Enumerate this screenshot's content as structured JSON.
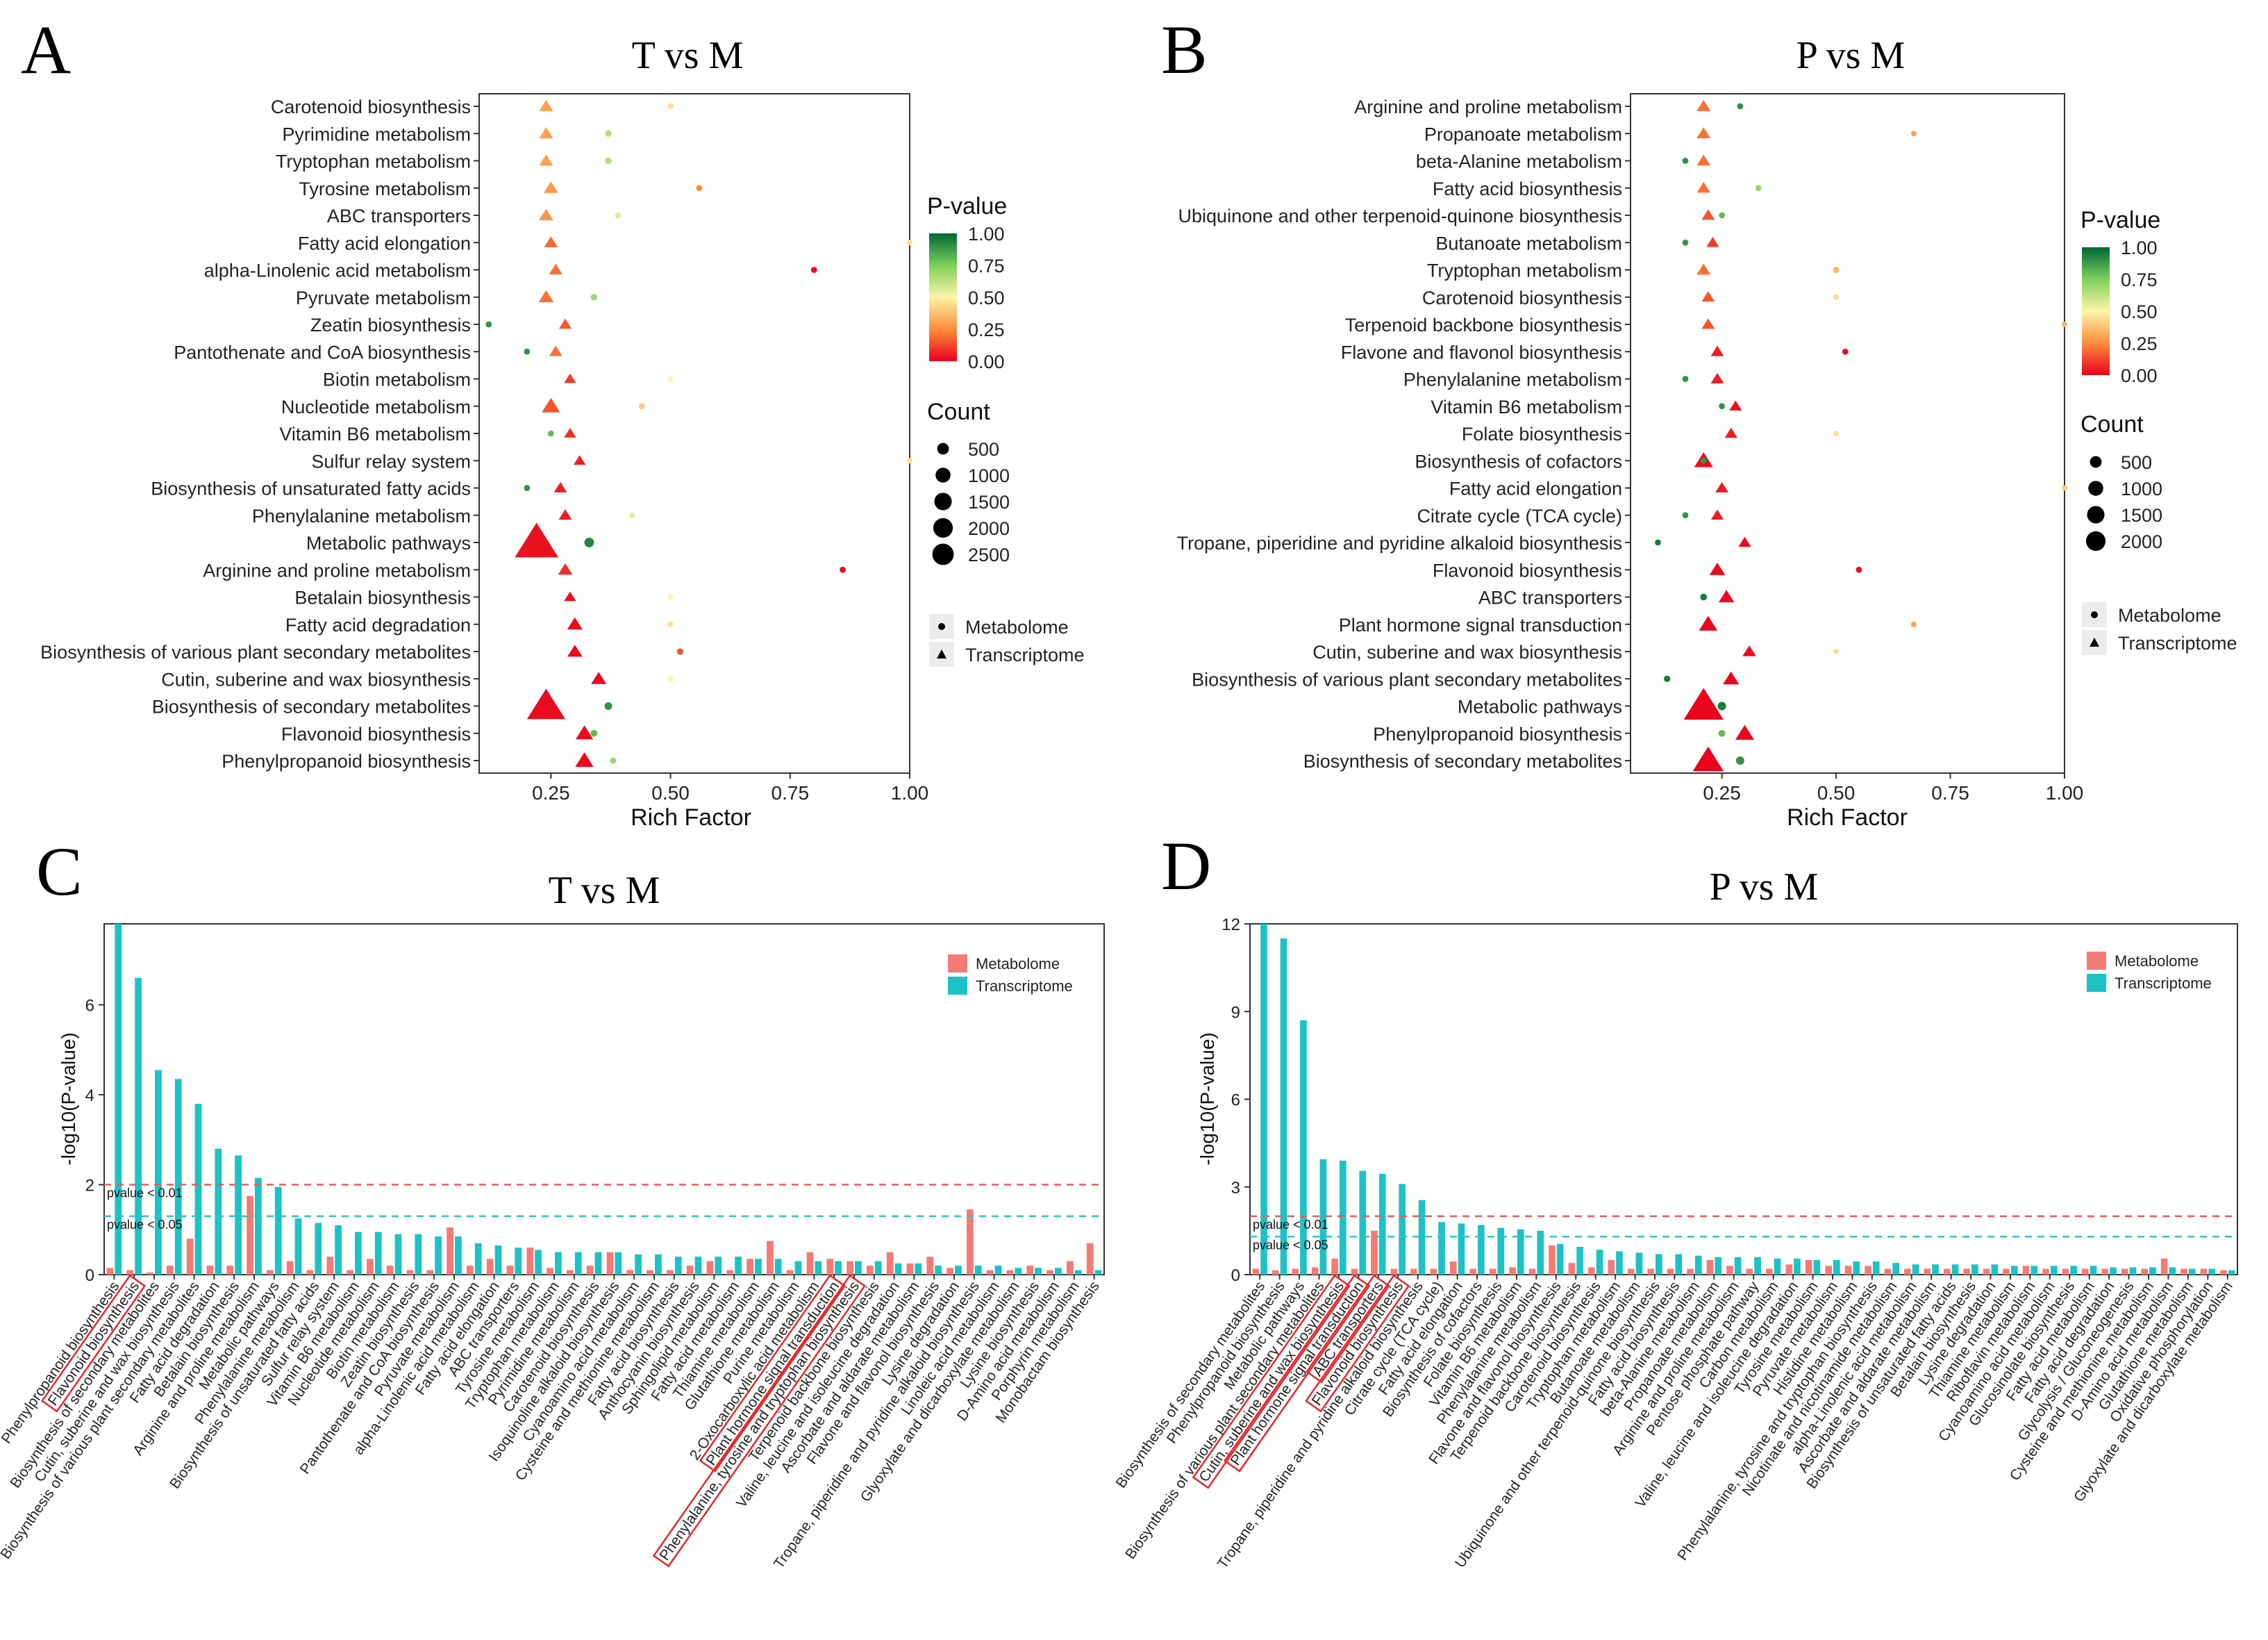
{
  "panel_letters": [
    "A",
    "B",
    "C",
    "D"
  ],
  "chart_data": [
    {
      "id": "A",
      "type": "scatter",
      "title": "T vs M",
      "xlabel": "Rich Factor",
      "xlim": [
        0.1,
        1.0
      ],
      "xticks": [
        "0.25",
        "0.50",
        "0.75",
        "1.00"
      ],
      "xtick_values": [
        0.25,
        0.5,
        0.75,
        1.0
      ],
      "categories": [
        "Carotenoid biosynthesis",
        "Pyrimidine metabolism",
        "Tryptophan metabolism",
        "Tyrosine metabolism",
        "ABC transporters",
        "Fatty acid elongation",
        "alpha-Linolenic acid metabolism",
        "Pyruvate metabolism",
        "Zeatin biosynthesis",
        "Pantothenate and CoA biosynthesis",
        "Biotin metabolism",
        "Nucleotide metabolism",
        "Vitamin B6 metabolism",
        "Sulfur relay system",
        "Biosynthesis of unsaturated fatty acids",
        "Phenylalanine metabolism",
        "Metabolic pathways",
        "Arginine and proline metabolism",
        "Betalain biosynthesis",
        "Fatty acid degradation",
        "Biosynthesis of various plant secondary metabolites",
        "Cutin, suberine and wax biosynthesis",
        "Biosynthesis of secondary metabolites",
        "Flavonoid biosynthesis",
        "Phenylpropanoid biosynthesis"
      ],
      "transcriptome": {
        "rich": [
          0.24,
          0.24,
          0.24,
          0.25,
          0.24,
          0.25,
          0.26,
          0.24,
          0.28,
          0.26,
          0.29,
          0.25,
          0.29,
          0.31,
          0.27,
          0.28,
          0.22,
          0.28,
          0.29,
          0.3,
          0.3,
          0.35,
          0.24,
          0.32,
          0.32
        ],
        "pvalue": [
          0.3,
          0.3,
          0.3,
          0.28,
          0.28,
          0.18,
          0.2,
          0.2,
          0.15,
          0.2,
          0.1,
          0.15,
          0.08,
          0.05,
          0.05,
          0.05,
          0.03,
          0.08,
          0.03,
          0.02,
          0.02,
          0.02,
          0.02,
          0.02,
          0.02
        ],
        "count": [
          80,
          90,
          80,
          90,
          100,
          70,
          70,
          110,
          50,
          60,
          40,
          230,
          40,
          40,
          60,
          60,
          2600,
          90,
          40,
          120,
          110,
          120,
          1900,
          200,
          230
        ]
      },
      "metabolome": {
        "rich": [
          0.5,
          0.37,
          0.37,
          0.56,
          0.39,
          1.0,
          0.8,
          0.34,
          0.12,
          0.2,
          0.5,
          0.44,
          0.25,
          1.0,
          0.2,
          0.42,
          0.33,
          0.86,
          0.5,
          0.5,
          0.52,
          0.5,
          0.37,
          0.34,
          0.38
        ],
        "pvalue": [
          0.45,
          0.65,
          0.65,
          0.25,
          0.55,
          0.45,
          0.02,
          0.7,
          0.9,
          0.9,
          0.5,
          0.4,
          0.8,
          0.45,
          0.9,
          0.55,
          0.93,
          0.02,
          0.5,
          0.45,
          0.15,
          0.5,
          0.9,
          0.8,
          0.7
        ],
        "count": [
          20,
          30,
          30,
          20,
          20,
          10,
          20,
          30,
          20,
          20,
          10,
          20,
          20,
          10,
          20,
          10,
          180,
          20,
          10,
          10,
          30,
          20,
          70,
          40,
          20
        ]
      },
      "color_legend": {
        "title": "P-value",
        "ticks": [
          "1.00",
          "0.75",
          "0.50",
          "0.25",
          "0.00"
        ]
      },
      "size_legend": {
        "title": "Count",
        "labels": [
          "500",
          "1000",
          "1500",
          "2000",
          "2500"
        ],
        "values": [
          500,
          1000,
          1500,
          2000,
          2500
        ]
      },
      "shape_legend": [
        "Metabolome",
        "Transcriptome"
      ]
    },
    {
      "id": "B",
      "type": "scatter",
      "title": "P vs M",
      "xlabel": "Rich Factor",
      "xlim": [
        0.05,
        1.0
      ],
      "xticks": [
        "0.25",
        "0.50",
        "0.75",
        "1.00"
      ],
      "xtick_values": [
        0.25,
        0.5,
        0.75,
        1.0
      ],
      "categories": [
        "Arginine and proline metabolism",
        "Propanoate metabolism",
        "beta-Alanine metabolism",
        "Fatty acid biosynthesis",
        "Ubiquinone and other terpenoid-quinone biosynthesis",
        "Butanoate metabolism",
        "Tryptophan metabolism",
        "Carotenoid biosynthesis",
        "Terpenoid backbone biosynthesis",
        "Flavone and flavonol biosynthesis",
        "Phenylalanine metabolism",
        "Vitamin B6 metabolism",
        "Folate biosynthesis",
        "Biosynthesis of cofactors",
        "Fatty acid elongation",
        "Citrate cycle (TCA cycle)",
        "Tropane, piperidine and pyridine alkaloid biosynthesis",
        "Flavonoid biosynthesis",
        "ABC transporters",
        "Plant hormone signal transduction",
        "Cutin, suberine and wax biosynthesis",
        "Biosynthesis of various plant secondary metabolites",
        "Metabolic pathways",
        "Phenylpropanoid biosynthesis",
        "Biosynthesis of secondary metabolites"
      ],
      "transcriptome": {
        "rich": [
          0.21,
          0.21,
          0.21,
          0.21,
          0.22,
          0.23,
          0.21,
          0.22,
          0.22,
          0.24,
          0.24,
          0.28,
          0.27,
          0.21,
          0.25,
          0.24,
          0.3,
          0.24,
          0.26,
          0.22,
          0.31,
          0.27,
          0.21,
          0.3,
          0.22
        ],
        "pvalue": [
          0.2,
          0.2,
          0.2,
          0.2,
          0.15,
          0.1,
          0.2,
          0.15,
          0.15,
          0.05,
          0.05,
          0.03,
          0.05,
          0.02,
          0.05,
          0.05,
          0.02,
          0.02,
          0.02,
          0.01,
          0.02,
          0.01,
          0.01,
          0.01,
          0.01
        ],
        "count": [
          80,
          80,
          70,
          70,
          60,
          50,
          80,
          60,
          60,
          60,
          60,
          50,
          50,
          250,
          60,
          50,
          50,
          130,
          130,
          240,
          70,
          150,
          2100,
          250,
          1100
        ]
      },
      "metabolome": {
        "rich": [
          0.29,
          0.67,
          0.17,
          0.33,
          0.25,
          0.17,
          0.5,
          0.5,
          1.0,
          0.52,
          0.17,
          0.25,
          0.5,
          0.21,
          1.0,
          0.17,
          0.11,
          0.55,
          0.21,
          0.67,
          0.5,
          0.13,
          0.25,
          0.25,
          0.29
        ],
        "pvalue": [
          0.9,
          0.3,
          0.9,
          0.7,
          0.8,
          0.9,
          0.35,
          0.45,
          0.35,
          0.02,
          0.9,
          0.9,
          0.45,
          0.9,
          0.4,
          0.9,
          0.95,
          0.02,
          0.95,
          0.3,
          0.45,
          0.95,
          0.95,
          0.8,
          0.9
        ],
        "count": [
          20,
          10,
          20,
          20,
          20,
          20,
          20,
          10,
          10,
          20,
          20,
          20,
          10,
          20,
          10,
          20,
          20,
          20,
          40,
          10,
          10,
          30,
          110,
          40,
          100
        ]
      },
      "color_legend": {
        "title": "P-value",
        "ticks": [
          "1.00",
          "0.75",
          "0.50",
          "0.25",
          "0.00"
        ]
      },
      "size_legend": {
        "title": "Count",
        "labels": [
          "500",
          "1000",
          "1500",
          "2000"
        ],
        "values": [
          500,
          1000,
          1500,
          2000
        ]
      },
      "shape_legend": [
        "Metabolome",
        "Transcriptome"
      ]
    },
    {
      "id": "C",
      "type": "bar",
      "title": "T vs M",
      "ylabel": "-log10(P-value)",
      "ylim": [
        0,
        7.8
      ],
      "yticks": [
        "0",
        "2",
        "4",
        "6"
      ],
      "ytick_values": [
        0,
        2,
        4,
        6
      ],
      "thresholds": [
        {
          "label": "pvalue < 0.01",
          "value": 2.0,
          "color": "#ef5a5a"
        },
        {
          "label": "pvalue < 0.05",
          "value": 1.3,
          "color": "#35c0c8"
        }
      ],
      "legend": [
        "Metabolome",
        "Transcriptome"
      ],
      "highlighted": [
        1,
        36,
        37
      ],
      "categories": [
        "Phenylpropanoid biosynthesis",
        "Flavonoid biosynthesis",
        "Biosynthesis of secondary metabolites",
        "Cutin, suberine and wax biosynthesis",
        "Biosynthesis of various plant secondary metabolites",
        "Fatty acid degradation",
        "Betalain biosynthesis",
        "Arginine and proline metabolism",
        "Metabolic pathways",
        "Phenylalanine metabolism",
        "Biosynthesis of unsaturated fatty acids",
        "Sulfur relay system",
        "Vitamin B6 metabolism",
        "Nucleotide metabolism",
        "Biotin metabolism",
        "Zeatin biosynthesis",
        "Pantothenate and CoA biosynthesis",
        "Pyruvate metabolism",
        "alpha-Linolenic acid metabolism",
        "Fatty acid elongation",
        "ABC transporters",
        "Tyrosine metabolism",
        "Tryptophan metabolism",
        "Pyrimidine metabolism",
        "Carotenoid biosynthesis",
        "Isoquinoline alkaloid biosynthesis",
        "Cyanoamino acid metabolism",
        "Cysteine and methionine metabolism",
        "Fatty acid biosynthesis",
        "Anthocyanin biosynthesis",
        "Sphingolipid metabolism",
        "Fatty acid metabolism",
        "Thiamine metabolism",
        "Glutathione metabolism",
        "Purine metabolism",
        "2-Oxocarboxylic acid metabolism",
        "Plant hormone signal transduction",
        "Phenylalanine, tyrosine and tryptophan biosynthesis",
        "Terpenoid backbone biosynthesis",
        "Valine, leucine and isoleucine degradation",
        "Ascorbate and aldarate metabolism",
        "Flavone and flavonol biosynthesis",
        "Lysine degradation",
        "Tropane, piperidine and pyridine alkaloid biosynthesis",
        "Linoleic acid metabolism",
        "Glyoxylate and dicarboxylate metabolism",
        "Lysine biosynthesis",
        "D-Amino acid metabolism",
        "Porphyrin metabolism",
        "Monobactam biosynthesis"
      ],
      "series": [
        {
          "name": "Metabolome",
          "values": [
            0.15,
            0.1,
            0.05,
            0.2,
            0.8,
            0.2,
            0.2,
            1.75,
            0.1,
            0.3,
            0.1,
            0.4,
            0.1,
            0.35,
            0.2,
            0.1,
            0.1,
            1.05,
            0.2,
            0.35,
            0.2,
            0.6,
            0.15,
            0.1,
            0.2,
            0.5,
            0.1,
            0.1,
            0.1,
            0.2,
            0.3,
            0.1,
            0.35,
            0.75,
            0.1,
            0.5,
            0.35,
            0.3,
            0.2,
            0.5,
            0.25,
            0.4,
            0.15,
            1.45,
            0.1,
            0.1,
            0.2,
            0.1,
            0.3,
            0.7
          ]
        },
        {
          "name": "Transcriptome",
          "values": [
            7.8,
            6.6,
            4.55,
            4.35,
            3.8,
            2.8,
            2.65,
            2.15,
            1.95,
            1.25,
            1.15,
            1.1,
            0.95,
            0.95,
            0.9,
            0.9,
            0.85,
            0.85,
            0.7,
            0.65,
            0.6,
            0.55,
            0.5,
            0.5,
            0.5,
            0.5,
            0.45,
            0.45,
            0.4,
            0.4,
            0.4,
            0.4,
            0.35,
            0.35,
            0.3,
            0.3,
            0.3,
            0.3,
            0.3,
            0.25,
            0.25,
            0.2,
            0.2,
            0.2,
            0.2,
            0.15,
            0.15,
            0.15,
            0.1,
            0.1
          ]
        }
      ]
    },
    {
      "id": "D",
      "type": "bar",
      "title": "P vs M",
      "ylabel": "-log10(P-value)",
      "ylim": [
        0,
        12
      ],
      "yticks": [
        "0",
        "3",
        "6",
        "9",
        "12"
      ],
      "ytick_values": [
        0,
        3,
        6,
        9,
        12
      ],
      "thresholds": [
        {
          "label": "pvalue < 0.01",
          "value": 2.0,
          "color": "#ef5a5a"
        },
        {
          "label": "pvalue < 0.05",
          "value": 1.3,
          "color": "#35c0c8"
        }
      ],
      "legend": [
        "Metabolome",
        "Transcriptome"
      ],
      "highlighted": [
        4,
        5,
        6,
        7
      ],
      "categories": [
        "Biosynthesis of secondary metabolites",
        "Phenylpropanoid biosynthesis",
        "Metabolic pathways",
        "Biosynthesis of various plant secondary metabolites",
        "Cutin, suberine and wax biosynthesis",
        "Plant hormone signal transduction",
        "ABC transporters",
        "Flavonoid biosynthesis",
        "Tropane, piperidine and pyridine alkaloid biosynthesis",
        "Citrate cycle (TCA cycle)",
        "Fatty acid elongation",
        "Biosynthesis of cofactors",
        "Folate biosynthesis",
        "Vitamin B6 metabolism",
        "Phenylalanine metabolism",
        "Flavone and flavonol biosynthesis",
        "Terpenoid backbone biosynthesis",
        "Carotenoid biosynthesis",
        "Tryptophan metabolism",
        "Butanoate metabolism",
        "Ubiquinone and other terpenoid-quinone biosynthesis",
        "Fatty acid biosynthesis",
        "beta-Alanine metabolism",
        "Propanoate metabolism",
        "Arginine and proline metabolism",
        "Pentose phosphate pathway",
        "Carbon metabolism",
        "Valine, leucine and isoleucine degradation",
        "Tyrosine metabolism",
        "Pyruvate metabolism",
        "Histidine metabolism",
        "Phenylalanine, tyrosine and tryptophan biosynthesis",
        "Nicotinate and nicotinamide metabolism",
        "alpha-Linolenic acid metabolism",
        "Ascorbate and aldarate metabolism",
        "Biosynthesis of unsaturated fatty acids",
        "Betalain biosynthesis",
        "Lysine degradation",
        "Thiamine metabolism",
        "Riboflavin metabolism",
        "Cyanoamino acid metabolism",
        "Glucosinolate biosynthesis",
        "Fatty acid metabolism",
        "Fatty acid degradation",
        "Glycolysis / Gluconeogenesis",
        "Cysteine and methionine metabolism",
        "D-Amino acid metabolism",
        "Glutathione metabolism",
        "Oxidative phosphorylation",
        "Glyoxylate and dicarboxylate metabolism"
      ],
      "series": [
        {
          "name": "Metabolome",
          "values": [
            0.2,
            0.15,
            0.2,
            0.25,
            0.55,
            0.2,
            1.5,
            0.2,
            0.2,
            0.2,
            0.45,
            0.2,
            0.2,
            0.25,
            0.2,
            1.0,
            0.4,
            0.25,
            0.5,
            0.2,
            0.2,
            0.2,
            0.2,
            0.5,
            0.3,
            0.2,
            0.2,
            0.35,
            0.5,
            0.3,
            0.3,
            0.3,
            0.2,
            0.2,
            0.2,
            0.2,
            0.2,
            0.2,
            0.2,
            0.3,
            0.2,
            0.2,
            0.2,
            0.2,
            0.2,
            0.2,
            0.55,
            0.2,
            0.2,
            0.15
          ]
        },
        {
          "name": "Transcriptome",
          "values": [
            12.0,
            11.5,
            8.7,
            3.95,
            3.9,
            3.55,
            3.45,
            3.1,
            2.55,
            1.8,
            1.75,
            1.7,
            1.6,
            1.55,
            1.5,
            1.05,
            0.95,
            0.85,
            0.8,
            0.75,
            0.7,
            0.7,
            0.65,
            0.6,
            0.6,
            0.6,
            0.55,
            0.55,
            0.5,
            0.5,
            0.45,
            0.45,
            0.4,
            0.35,
            0.35,
            0.35,
            0.35,
            0.35,
            0.3,
            0.3,
            0.3,
            0.3,
            0.3,
            0.25,
            0.25,
            0.25,
            0.25,
            0.2,
            0.2,
            0.15
          ]
        }
      ]
    }
  ],
  "colors": {
    "metabolome_bar": "#f37b76",
    "transcriptome_bar": "#1cc2c6",
    "highlight_box": "#e8262b",
    "pval_gradient": [
      "#d7191c",
      "#fdae61",
      "#ffffbf",
      "#a6d96a",
      "#1a9641",
      "#006d2c"
    ]
  }
}
